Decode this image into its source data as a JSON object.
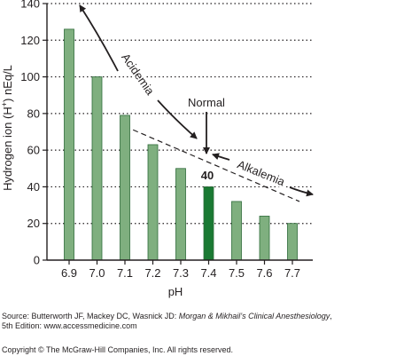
{
  "chart_data": {
    "type": "bar",
    "categories": [
      "6.9",
      "7.0",
      "7.1",
      "7.2",
      "7.3",
      "7.4",
      "7.5",
      "7.6",
      "7.7"
    ],
    "values": [
      126,
      100,
      79,
      63,
      50,
      40,
      32,
      24,
      20
    ],
    "highlight_category": "7.4",
    "xlabel": "pH",
    "ylabel_parts": [
      "Hydrogen ion (H",
      "+",
      ") nEq/L"
    ],
    "ylim": [
      0,
      140
    ],
    "yticks": [
      0,
      20,
      40,
      60,
      80,
      100,
      120,
      140
    ],
    "grid": true,
    "grid_style": "dotted horizontal",
    "trend_line": {
      "style": "dashed",
      "from_x": "7.1",
      "from_y": 73,
      "to_x": "7.7",
      "to_y": 32
    },
    "annotations": {
      "acidemia": "Acidemia",
      "alkalemia": "Alkalemia",
      "normal": "Normal",
      "normal_value": "40"
    },
    "colors": {
      "bar": "#7faf7f",
      "bar_stroke": "#2f6b3a",
      "highlight_bar": "#1a7a33",
      "axis": "#231f20",
      "grid": "#231f20"
    }
  },
  "footer": {
    "source_prefix": "Source: Butterworth JF, Mackey DC, Wasnick JD: ",
    "source_title": "Morgan & Mikhail’s Clinical Anesthesiology",
    "source_suffix": ",",
    "edition_line": "5th Edition: www.accessmedicine.com",
    "copyright": "Copyright © The McGraw-Hill Companies, Inc. All rights reserved."
  }
}
